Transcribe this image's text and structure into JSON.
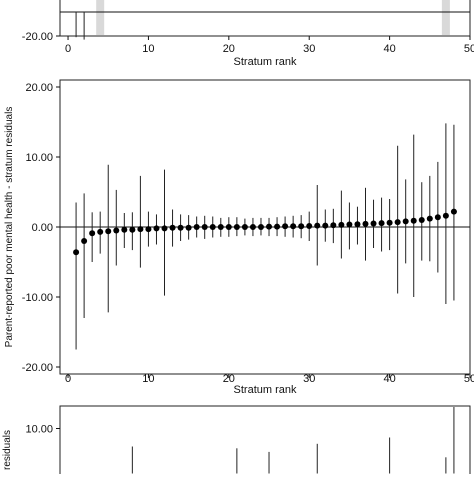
{
  "chart_data": [
    {
      "type": "scatter",
      "xlabel": "Stratum rank",
      "ylabel": "",
      "xlim": [
        -1,
        50
      ],
      "ylim": [
        -20,
        20
      ],
      "xticks": [
        0,
        10,
        20,
        30,
        40,
        50
      ],
      "xtick_labels": [
        "0",
        "10",
        "20",
        "30",
        "40",
        "50"
      ],
      "yticks": [
        -20
      ],
      "ytick_labels": [
        "-20.00"
      ],
      "zero_line": true,
      "grid": false,
      "points": [
        {
          "x": 1,
          "y": 0,
          "lo": -21,
          "hi": 0
        },
        {
          "x": 2,
          "y": 0,
          "lo": -23,
          "hi": 0
        }
      ],
      "highlight_bars": [
        {
          "x": 4
        },
        {
          "x": 47
        }
      ],
      "highlight_color": "#d9d9d9"
    },
    {
      "type": "scatter",
      "xlabel": "Stratum rank",
      "ylabel": "Parent-reported poor mental health - stratum residuals",
      "xlim": [
        -1,
        50
      ],
      "ylim": [
        -21,
        21
      ],
      "xticks": [
        0,
        10,
        20,
        30,
        40,
        50
      ],
      "xtick_labels": [
        "0",
        "10",
        "20",
        "30",
        "40",
        "50"
      ],
      "yticks": [
        -20,
        -10,
        0,
        10,
        20
      ],
      "ytick_labels": [
        "-20.00",
        "-10.00",
        "0.00",
        "10.00",
        "20.00"
      ],
      "zero_line": true,
      "grid": false,
      "points": [
        {
          "x": 1,
          "y": -3.6,
          "lo": -17.5,
          "hi": 3.5
        },
        {
          "x": 2,
          "y": -2.0,
          "lo": -13.0,
          "hi": 4.8
        },
        {
          "x": 3,
          "y": -0.9,
          "lo": -5.0,
          "hi": 2.1
        },
        {
          "x": 4,
          "y": -0.7,
          "lo": -3.8,
          "hi": 2.2
        },
        {
          "x": 5,
          "y": -0.6,
          "lo": -12.2,
          "hi": 8.9
        },
        {
          "x": 6,
          "y": -0.5,
          "lo": -5.5,
          "hi": 5.3
        },
        {
          "x": 7,
          "y": -0.4,
          "lo": -3.0,
          "hi": 2.0
        },
        {
          "x": 8,
          "y": -0.4,
          "lo": -3.3,
          "hi": 2.1
        },
        {
          "x": 9,
          "y": -0.3,
          "lo": -5.8,
          "hi": 7.3
        },
        {
          "x": 10,
          "y": -0.3,
          "lo": -2.8,
          "hi": 2.2
        },
        {
          "x": 11,
          "y": -0.2,
          "lo": -2.5,
          "hi": 1.8
        },
        {
          "x": 12,
          "y": -0.2,
          "lo": -9.8,
          "hi": 8.2
        },
        {
          "x": 13,
          "y": -0.1,
          "lo": -2.8,
          "hi": 2.5
        },
        {
          "x": 14,
          "y": -0.1,
          "lo": -2.0,
          "hi": 1.8
        },
        {
          "x": 15,
          "y": -0.1,
          "lo": -1.8,
          "hi": 1.7
        },
        {
          "x": 16,
          "y": 0.0,
          "lo": -1.5,
          "hi": 1.5
        },
        {
          "x": 17,
          "y": 0.0,
          "lo": -1.7,
          "hi": 1.6
        },
        {
          "x": 18,
          "y": 0.0,
          "lo": -1.5,
          "hi": 1.5
        },
        {
          "x": 19,
          "y": 0.0,
          "lo": -1.4,
          "hi": 1.3
        },
        {
          "x": 20,
          "y": 0.0,
          "lo": -1.4,
          "hi": 1.4
        },
        {
          "x": 21,
          "y": 0.0,
          "lo": -1.3,
          "hi": 1.4
        },
        {
          "x": 22,
          "y": 0.0,
          "lo": -1.2,
          "hi": 1.2
        },
        {
          "x": 23,
          "y": 0.0,
          "lo": -1.3,
          "hi": 1.3
        },
        {
          "x": 24,
          "y": 0.0,
          "lo": -1.2,
          "hi": 1.3
        },
        {
          "x": 25,
          "y": 0.05,
          "lo": -1.3,
          "hi": 1.3
        },
        {
          "x": 26,
          "y": 0.05,
          "lo": -1.3,
          "hi": 1.4
        },
        {
          "x": 27,
          "y": 0.1,
          "lo": -1.4,
          "hi": 1.5
        },
        {
          "x": 28,
          "y": 0.1,
          "lo": -1.5,
          "hi": 1.6
        },
        {
          "x": 29,
          "y": 0.1,
          "lo": -1.6,
          "hi": 1.7
        },
        {
          "x": 30,
          "y": 0.15,
          "lo": -2.0,
          "hi": 2.2
        },
        {
          "x": 31,
          "y": 0.2,
          "lo": -5.5,
          "hi": 6.0
        },
        {
          "x": 32,
          "y": 0.2,
          "lo": -2.1,
          "hi": 2.5
        },
        {
          "x": 33,
          "y": 0.25,
          "lo": -2.3,
          "hi": 2.6
        },
        {
          "x": 34,
          "y": 0.3,
          "lo": -4.5,
          "hi": 5.2
        },
        {
          "x": 35,
          "y": 0.35,
          "lo": -3.2,
          "hi": 3.5
        },
        {
          "x": 36,
          "y": 0.4,
          "lo": -2.5,
          "hi": 2.9
        },
        {
          "x": 37,
          "y": 0.45,
          "lo": -4.8,
          "hi": 5.6
        },
        {
          "x": 38,
          "y": 0.5,
          "lo": -3.0,
          "hi": 3.9
        },
        {
          "x": 39,
          "y": 0.55,
          "lo": -3.5,
          "hi": 4.2
        },
        {
          "x": 40,
          "y": 0.6,
          "lo": -3.3,
          "hi": 4.0
        },
        {
          "x": 41,
          "y": 0.7,
          "lo": -9.5,
          "hi": 11.6
        },
        {
          "x": 42,
          "y": 0.8,
          "lo": -5.2,
          "hi": 6.8
        },
        {
          "x": 43,
          "y": 0.9,
          "lo": -10.0,
          "hi": 13.2
        },
        {
          "x": 44,
          "y": 1.0,
          "lo": -4.8,
          "hi": 6.4
        },
        {
          "x": 45,
          "y": 1.2,
          "lo": -4.9,
          "hi": 7.3
        },
        {
          "x": 46,
          "y": 1.4,
          "lo": -6.5,
          "hi": 9.3
        },
        {
          "x": 47,
          "y": 1.6,
          "lo": -11.0,
          "hi": 14.8
        },
        {
          "x": 48,
          "y": 2.2,
          "lo": -10.5,
          "hi": 14.6
        }
      ]
    },
    {
      "type": "scatter",
      "xlabel": "",
      "ylabel": "residuals",
      "xlim": [
        -1,
        50
      ],
      "ylim": [
        -5,
        15
      ],
      "xticks": [],
      "xtick_labels": [],
      "yticks": [
        10
      ],
      "ytick_labels": [
        "10.00"
      ],
      "zero_line": false,
      "grid": false,
      "points": [
        {
          "x": 8,
          "y": 0,
          "hi": 6.0
        },
        {
          "x": 21,
          "y": 0,
          "hi": 5.6
        },
        {
          "x": 25,
          "y": 0,
          "hi": 4.8
        },
        {
          "x": 31,
          "y": 0,
          "hi": 6.6
        },
        {
          "x": 40,
          "y": 0,
          "hi": 8.0
        },
        {
          "x": 47,
          "y": 0,
          "hi": 3.6
        },
        {
          "x": 48,
          "y": 0,
          "hi": 15.0
        }
      ]
    }
  ]
}
